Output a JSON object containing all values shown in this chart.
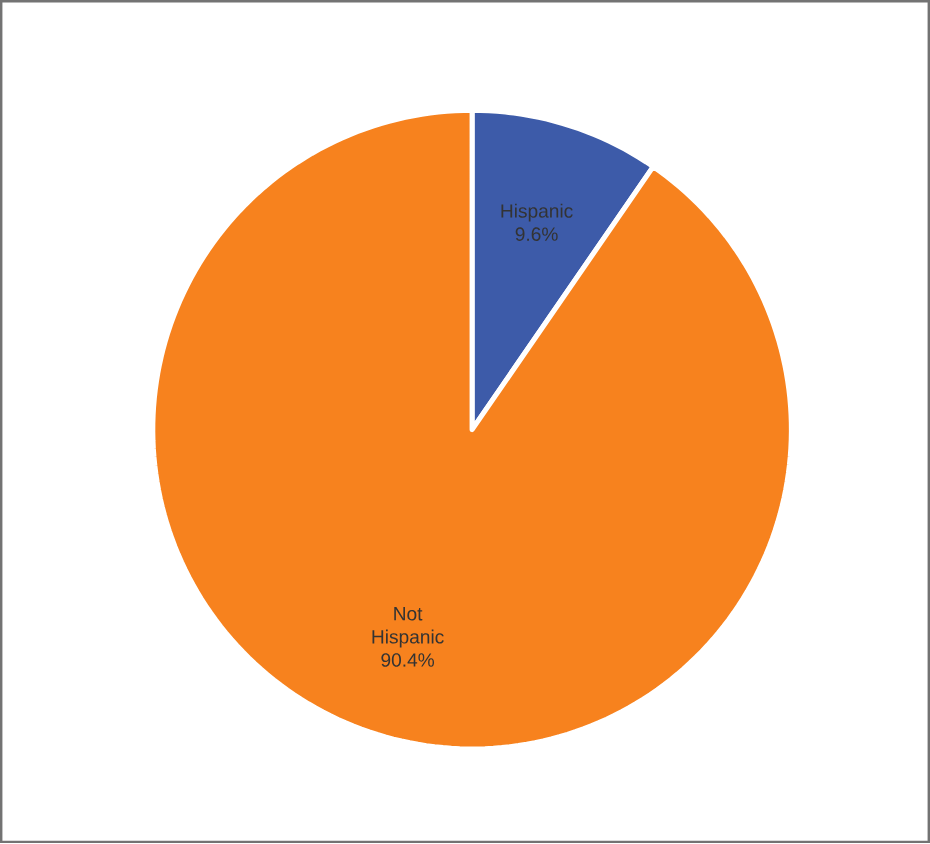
{
  "chart_data": {
    "type": "pie",
    "categories": [
      "Hispanic",
      "Not Hispanic"
    ],
    "values": [
      9.6,
      90.4
    ],
    "colors": [
      "#3d5ba9",
      "#f7821e"
    ],
    "value_labels": [
      "9.6%",
      "90.4%"
    ]
  }
}
